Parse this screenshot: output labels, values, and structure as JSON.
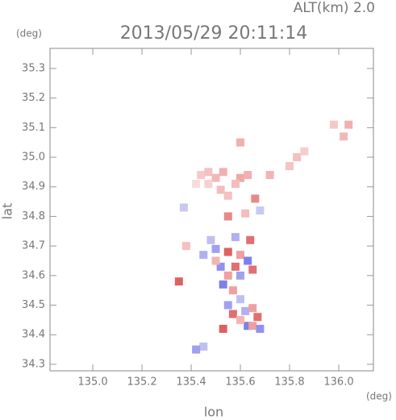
{
  "chart_data": {
    "type": "scatter",
    "title": "2013/05/29 20:11:14",
    "subtitle": "ALT(km) 2.0",
    "x_label": "lon",
    "y_label": "lat",
    "x_unit": "(deg)",
    "y_unit": "(deg)",
    "xlim": [
      134.826,
      136.141
    ],
    "ylim": [
      34.278,
      35.368
    ],
    "xticks": [
      {
        "value": 135.0,
        "label": "135.0"
      },
      135.2,
      135.4,
      135.6,
      135.8,
      {
        "value": 136.0,
        "label": "136.0"
      }
    ],
    "yticks": [
      34.3,
      34.4,
      34.5,
      34.6,
      34.7,
      34.8,
      34.9,
      {
        "value": 35.0,
        "label": "35.0"
      },
      35.1,
      35.2,
      35.3
    ],
    "marker_size": 10,
    "x": [
      135.44,
      135.47,
      135.5,
      135.47,
      135.52,
      135.55,
      135.53,
      135.42,
      135.6,
      135.63,
      135.58,
      135.6,
      135.72,
      135.8,
      135.83,
      135.86,
      135.98,
      136.04,
      136.02,
      135.37,
      135.66,
      135.55,
      135.62,
      135.68,
      135.5,
      135.55,
      135.6,
      135.63,
      135.58,
      135.52,
      135.55,
      135.6,
      135.65,
      135.5,
      135.45,
      135.38,
      135.53,
      135.57,
      135.6,
      135.55,
      135.57,
      135.62,
      135.65,
      135.67,
      135.63,
      135.6,
      135.65,
      135.68,
      135.53,
      135.45,
      135.42,
      135.35,
      135.64,
      135.58,
      135.48
    ],
    "y": [
      34.94,
      34.95,
      34.93,
      34.91,
      34.89,
      34.87,
      34.95,
      34.91,
      34.93,
      34.94,
      34.91,
      35.05,
      34.94,
      34.97,
      35.0,
      35.02,
      35.11,
      35.11,
      35.07,
      34.83,
      34.86,
      34.8,
      34.81,
      34.82,
      34.69,
      34.68,
      34.67,
      34.65,
      34.63,
      34.63,
      34.6,
      34.6,
      34.62,
      34.65,
      34.67,
      34.7,
      34.57,
      34.55,
      34.52,
      34.5,
      34.47,
      34.48,
      34.49,
      34.46,
      34.43,
      34.45,
      34.43,
      34.42,
      34.42,
      34.36,
      34.35,
      34.58,
      34.72,
      34.73,
      34.72
    ],
    "colors": [
      "#f6c8c8",
      "#f4c0c0",
      "#f2b8b8",
      "#f8d0d0",
      "#f4bcbc",
      "#f4c0c0",
      "#f0b0b0",
      "#f8dcdc",
      "#f0a8a8",
      "#f2b0b0",
      "#f4bcbc",
      "#f0b0b0",
      "#f2b4b4",
      "#f6c4c4",
      "#f4c0c0",
      "#f8cccc",
      "#f6c8c8",
      "#f0b0b0",
      "#f2b8b8",
      "#c8c8f0",
      "#e88888",
      "#e88888",
      "#f4bcbc",
      "#c8c8f0",
      "#a0a0f0",
      "#e06060",
      "#f0a0a0",
      "#8080e8",
      "#e07070",
      "#9090f0",
      "#f0a0a0",
      "#a0a0f0",
      "#e07070",
      "#f4b4b4",
      "#b0b0f0",
      "#f4c0c0",
      "#8080e8",
      "#f0a0a0",
      "#c0c0f0",
      "#a0a0f0",
      "#e07070",
      "#b0b0f0",
      "#f0a0a0",
      "#e07070",
      "#8080e8",
      "#f4b4b4",
      "#f0a0a0",
      "#9090f0",
      "#e06060",
      "#c0c0f0",
      "#a0a0f0",
      "#e06060",
      "#e07070",
      "#b0b0f0",
      "#c0c0f0"
    ]
  }
}
